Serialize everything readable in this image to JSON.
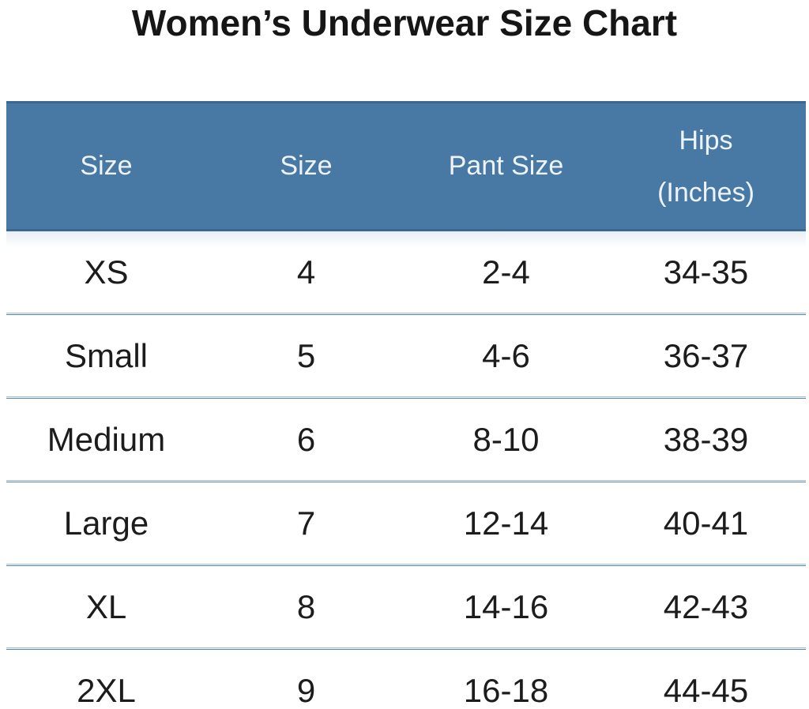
{
  "header": {
    "hips_line1": "Hips",
    "hips_line2": "(Inches)"
  },
  "chart_data": {
    "type": "table",
    "title": "Women’s Underwear Size Chart",
    "columns": [
      "Size",
      "Size",
      "Pant Size",
      "Hips (Inches)"
    ],
    "rows": [
      [
        "XS",
        "4",
        "2-4",
        "34-35"
      ],
      [
        "Small",
        "5",
        "4-6",
        "36-37"
      ],
      [
        "Medium",
        "6",
        "8-10",
        "38-39"
      ],
      [
        "Large",
        "7",
        "12-14",
        "40-41"
      ],
      [
        "XL",
        "8",
        "14-16",
        "42-43"
      ],
      [
        "2XL",
        "9",
        "16-18",
        "44-45"
      ]
    ]
  },
  "colors": {
    "background": "#ffffff",
    "title_text": "#161616",
    "header_bg": "#4879a5",
    "header_border": "#3a6890",
    "header_text": "#eef3f8",
    "separator_light": "#a6c0d6",
    "separator_dark": "#5b88ad",
    "body_text": "#1c1c1c"
  }
}
